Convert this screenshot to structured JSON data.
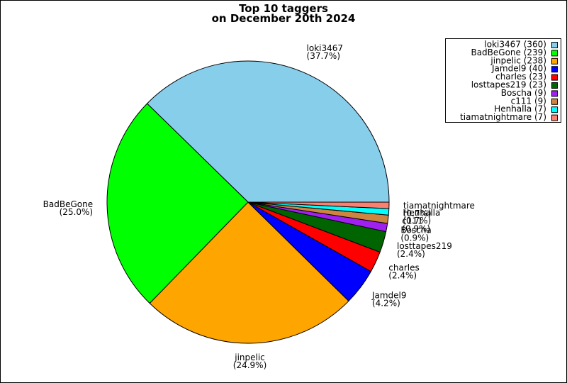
{
  "chart_data": {
    "type": "pie",
    "title": "Top 10 taggers",
    "subtitle": "on December 20th 2024",
    "categories": [
      "loki3467",
      "BadBeGone",
      "jinpelic",
      "Jamdel9",
      "charles",
      "losttapes219",
      "Boscha",
      "c111",
      "Henhalla",
      "tiamatnightmare"
    ],
    "values": [
      360,
      239,
      238,
      40,
      23,
      23,
      9,
      9,
      7,
      7
    ],
    "value_labels": [
      "(37.7%)",
      "(25.0%)",
      "(24.9%)",
      "(4.2%)",
      "(2.4%)",
      "(2.4%)",
      "(0.9%)",
      "(0.9%)",
      "(0.7%)",
      "(0.7%)"
    ],
    "legend_labels": [
      "loki3467 (360)",
      "BadBeGone (239)",
      "jinpelic (238)",
      "Jamdel9 (40)",
      "charles (23)",
      "losttapes219 (23)",
      "Boscha (9)",
      "c111 (9)",
      "Henhalla (7)",
      "tiamatnightmare (7)"
    ],
    "colors": [
      "#87ceeb",
      "#00ff00",
      "#ffa500",
      "#0000ff",
      "#ff0000",
      "#006400",
      "#a020f0",
      "#cd853f",
      "#00ffff",
      "#fa8072"
    ],
    "legend": "upper right"
  }
}
